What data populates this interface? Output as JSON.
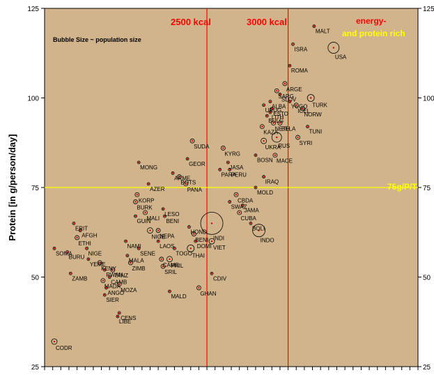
{
  "chart_data": {
    "type": "scatter",
    "title": "",
    "ylabel": "Protein [in g/person/day]",
    "xlabel": "",
    "ylim": [
      25,
      125
    ],
    "xlim": [
      1500,
      3800
    ],
    "y_ticks": [
      25,
      50,
      75,
      100,
      125
    ],
    "grid": false,
    "colors": {
      "background": "#d2b48c",
      "plot_border": "#000000",
      "kcal_lines": "#ff0000",
      "threshold_line": "#ffff00",
      "bubble": "#000000",
      "dot": "#cc0000"
    },
    "annotations": {
      "bubble_note": "Bubble Size ~ population size",
      "kcal_2500": "2500 kcal",
      "kcal_3000": "3000 kcal",
      "rich_1": "energy-",
      "rich_2": "and protein rich",
      "threshold_label": "75g/P/T"
    },
    "vlines": [
      2500,
      3000
    ],
    "hline": 75,
    "points": [
      {
        "label": "CODR",
        "x": 1560,
        "y": 32,
        "r": 4
      },
      {
        "label": "SOMA",
        "x": 1560,
        "y": 58,
        "r": 2
      },
      {
        "label": "ZAMB",
        "x": 1660,
        "y": 51,
        "r": 2
      },
      {
        "label": "BURU",
        "x": 1640,
        "y": 57,
        "r": 2
      },
      {
        "label": "ERIT",
        "x": 1680,
        "y": 65,
        "r": 2
      },
      {
        "label": "AFGH",
        "x": 1720,
        "y": 63,
        "r": 2
      },
      {
        "label": "ETHI",
        "x": 1700,
        "y": 61,
        "r": 3
      },
      {
        "label": "NIGE",
        "x": 1760,
        "y": 58,
        "r": 2
      },
      {
        "label": "YEME",
        "x": 1770,
        "y": 55,
        "r": 2
      },
      {
        "label": "KENY",
        "x": 1840,
        "y": 54,
        "r": 3
      },
      {
        "label": "RWAN",
        "x": 1870,
        "y": 52,
        "r": 2
      },
      {
        "label": "MADA",
        "x": 1860,
        "y": 49,
        "r": 3
      },
      {
        "label": "ANGO",
        "x": 1880,
        "y": 47,
        "r": 2
      },
      {
        "label": "SIER",
        "x": 1870,
        "y": 45,
        "r": 2
      },
      {
        "label": "CAMB",
        "x": 1900,
        "y": 50,
        "r": 2
      },
      {
        "label": "MOZA",
        "x": 1960,
        "y": 48,
        "r": 3
      },
      {
        "label": "TANZ",
        "x": 1920,
        "y": 52,
        "r": 3
      },
      {
        "label": "LIBE",
        "x": 1950,
        "y": 39,
        "r": 2
      },
      {
        "label": "CENS",
        "x": 1960,
        "y": 40,
        "r": 2
      },
      {
        "label": "NAMI",
        "x": 2000,
        "y": 60,
        "r": 2
      },
      {
        "label": "MALA",
        "x": 2010,
        "y": 56,
        "r": 2
      },
      {
        "label": "ZIMB",
        "x": 2030,
        "y": 54,
        "r": 3
      },
      {
        "label": "SENE",
        "x": 2080,
        "y": 58,
        "r": 2
      },
      {
        "label": "GUIN",
        "x": 2060,
        "y": 67,
        "r": 2
      },
      {
        "label": "BURK",
        "x": 2060,
        "y": 71,
        "r": 3
      },
      {
        "label": "KORP",
        "x": 2070,
        "y": 73,
        "r": 3
      },
      {
        "label": "MONG",
        "x": 2080,
        "y": 82,
        "r": 2
      },
      {
        "label": "AZER",
        "x": 2140,
        "y": 76,
        "r": 2
      },
      {
        "label": "MALI",
        "x": 2120,
        "y": 68,
        "r": 3
      },
      {
        "label": "NIGE",
        "x": 2150,
        "y": 63,
        "r": 4
      },
      {
        "label": "NEPA",
        "x": 2200,
        "y": 63,
        "r": 3
      },
      {
        "label": "LAOS",
        "x": 2200,
        "y": 60,
        "r": 2
      },
      {
        "label": "CAME",
        "x": 2220,
        "y": 55,
        "r": 3
      },
      {
        "label": "SRIL",
        "x": 2230,
        "y": 53,
        "r": 3
      },
      {
        "label": "PHIL",
        "x": 2270,
        "y": 55,
        "r": 4
      },
      {
        "label": "TOGO",
        "x": 2300,
        "y": 58,
        "r": 2
      },
      {
        "label": "MALD",
        "x": 2270,
        "y": 46,
        "r": 2
      },
      {
        "label": "LESO",
        "x": 2230,
        "y": 69,
        "r": 2
      },
      {
        "label": "BENI",
        "x": 2240,
        "y": 67,
        "r": 2
      },
      {
        "label": "BOTS",
        "x": 2330,
        "y": 78,
        "r": 3
      },
      {
        "label": "ARME",
        "x": 2290,
        "y": 79,
        "r": 2
      },
      {
        "label": "PANA",
        "x": 2370,
        "y": 76,
        "r": 3
      },
      {
        "label": "GEOR",
        "x": 2380,
        "y": 83,
        "r": 2
      },
      {
        "label": "SUDA",
        "x": 2410,
        "y": 88,
        "r": 3
      },
      {
        "label": "HOND",
        "x": 2390,
        "y": 64,
        "r": 2
      },
      {
        "label": "BENI",
        "x": 2420,
        "y": 62,
        "r": 3
      },
      {
        "label": "DOMI",
        "x": 2430,
        "y": 60,
        "r": 2
      },
      {
        "label": "THAI",
        "x": 2400,
        "y": 58,
        "r": 5
      },
      {
        "label": "GHAN",
        "x": 2450,
        "y": 47,
        "r": 3
      },
      {
        "label": "CDIV",
        "x": 2530,
        "y": 51,
        "r": 2
      },
      {
        "label": "INDI",
        "x": 2530,
        "y": 65,
        "r": 16
      },
      {
        "label": "VIET",
        "x": 2530,
        "y": 60,
        "r": 4
      },
      {
        "label": "KYRG",
        "x": 2600,
        "y": 86,
        "r": 3
      },
      {
        "label": "JASA",
        "x": 2630,
        "y": 82,
        "r": 2
      },
      {
        "label": "PARA",
        "x": 2580,
        "y": 80,
        "r": 2
      },
      {
        "label": "PERU",
        "x": 2640,
        "y": 80,
        "r": 2
      },
      {
        "label": "CBDA",
        "x": 2680,
        "y": 73,
        "r": 3
      },
      {
        "label": "SWAZ",
        "x": 2640,
        "y": 71,
        "r": 2
      },
      {
        "label": "CUBA",
        "x": 2700,
        "y": 68,
        "r": 3
      },
      {
        "label": "JAMA",
        "x": 2720,
        "y": 70,
        "r": 2
      },
      {
        "label": "MOLD",
        "x": 2800,
        "y": 75,
        "r": 2
      },
      {
        "label": "INDO",
        "x": 2820,
        "y": 63,
        "r": 9
      },
      {
        "label": "BOLI",
        "x": 2770,
        "y": 65,
        "r": 2
      },
      {
        "label": "BOSN",
        "x": 2800,
        "y": 84,
        "r": 2
      },
      {
        "label": "IRAQ",
        "x": 2850,
        "y": 78,
        "r": 2
      },
      {
        "label": "MACE",
        "x": 2920,
        "y": 84,
        "r": 3
      },
      {
        "label": "RUS",
        "x": 2930,
        "y": 89,
        "r": 7
      },
      {
        "label": "UKRA",
        "x": 2850,
        "y": 88,
        "r": 4
      },
      {
        "label": "KAZA",
        "x": 2840,
        "y": 92,
        "r": 3
      },
      {
        "label": "BULG",
        "x": 2870,
        "y": 95,
        "r": 2
      },
      {
        "label": "LITH",
        "x": 2890,
        "y": 96,
        "r": 2
      },
      {
        "label": "NETH",
        "x": 2910,
        "y": 93,
        "r": 3
      },
      {
        "label": "BELA",
        "x": 2950,
        "y": 93,
        "r": 3
      },
      {
        "label": "URUG",
        "x": 2850,
        "y": 98,
        "r": 2
      },
      {
        "label": "ALBA",
        "x": 2890,
        "y": 99,
        "r": 2
      },
      {
        "label": "ESTO",
        "x": 2900,
        "y": 97,
        "r": 2
      },
      {
        "label": "SARG",
        "x": 2930,
        "y": 102,
        "r": 3
      },
      {
        "label": "SLOV",
        "x": 2950,
        "y": 101,
        "r": 2
      },
      {
        "label": "ARGE",
        "x": 2980,
        "y": 104,
        "r": 3
      },
      {
        "label": "YUGO",
        "x": 3010,
        "y": 99,
        "r": 2
      },
      {
        "label": "ICEL",
        "x": 3050,
        "y": 98,
        "r": 3
      },
      {
        "label": "NORW",
        "x": 3090,
        "y": 97,
        "r": 3
      },
      {
        "label": "TUNI",
        "x": 3120,
        "y": 92,
        "r": 2
      },
      {
        "label": "SYRI",
        "x": 3060,
        "y": 89,
        "r": 3
      },
      {
        "label": "TURK",
        "x": 3140,
        "y": 100,
        "r": 5
      },
      {
        "label": "ROMA",
        "x": 3010,
        "y": 109,
        "r": 2
      },
      {
        "label": "ISRA",
        "x": 3030,
        "y": 115,
        "r": 2
      },
      {
        "label": "MALT",
        "x": 3160,
        "y": 120,
        "r": 2
      },
      {
        "label": "USA",
        "x": 3280,
        "y": 114,
        "r": 8
      }
    ]
  }
}
